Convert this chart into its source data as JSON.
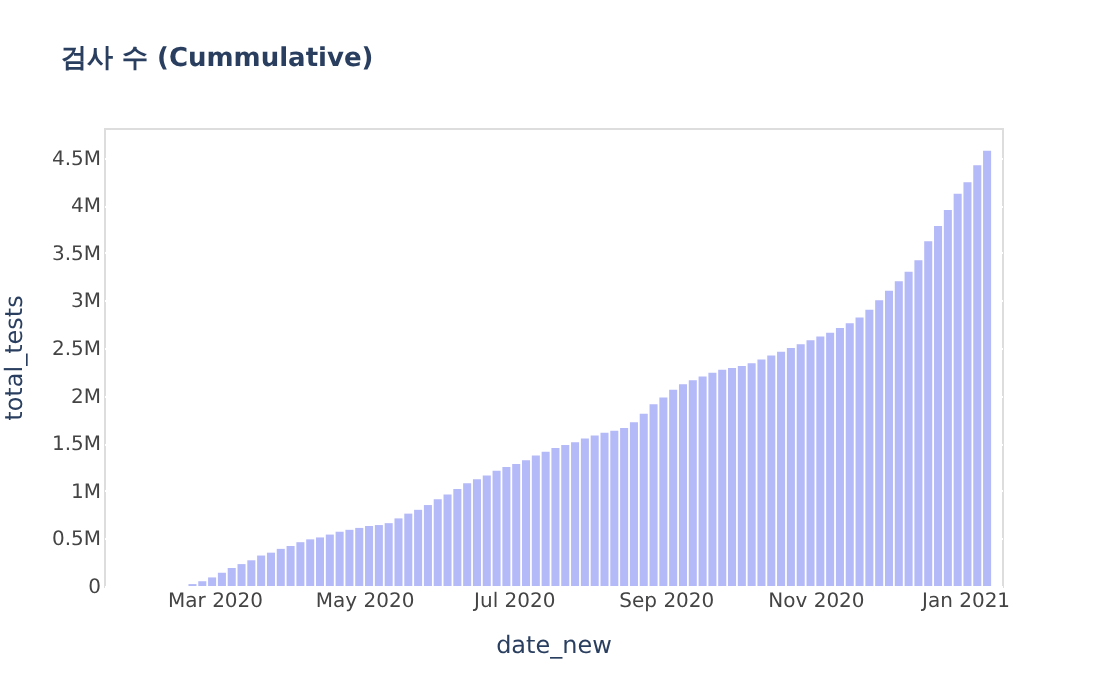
{
  "chart_data": {
    "type": "bar",
    "title": "검사 수 (Cummulative)",
    "xlabel": "date_new",
    "ylabel": "total_tests",
    "color": "#b4b9f7",
    "grid": "y",
    "x": [
      "2020-01-20",
      "2020-01-24",
      "2020-01-28",
      "2020-02-01",
      "2020-02-05",
      "2020-02-09",
      "2020-02-13",
      "2020-02-17",
      "2020-02-21",
      "2020-02-25",
      "2020-02-29",
      "2020-03-04",
      "2020-03-08",
      "2020-03-12",
      "2020-03-16",
      "2020-03-20",
      "2020-03-24",
      "2020-03-28",
      "2020-04-01",
      "2020-04-05",
      "2020-04-09",
      "2020-04-13",
      "2020-04-17",
      "2020-04-21",
      "2020-04-25",
      "2020-04-29",
      "2020-05-03",
      "2020-05-07",
      "2020-05-11",
      "2020-05-15",
      "2020-05-19",
      "2020-05-23",
      "2020-05-27",
      "2020-05-31",
      "2020-06-04",
      "2020-06-08",
      "2020-06-12",
      "2020-06-16",
      "2020-06-20",
      "2020-06-24",
      "2020-06-28",
      "2020-07-02",
      "2020-07-06",
      "2020-07-10",
      "2020-07-14",
      "2020-07-18",
      "2020-07-22",
      "2020-07-26",
      "2020-07-30",
      "2020-08-03",
      "2020-08-07",
      "2020-08-11",
      "2020-08-15",
      "2020-08-19",
      "2020-08-23",
      "2020-08-27",
      "2020-08-31",
      "2020-09-04",
      "2020-09-08",
      "2020-09-12",
      "2020-09-16",
      "2020-09-20",
      "2020-09-24",
      "2020-09-28",
      "2020-10-02",
      "2020-10-06",
      "2020-10-10",
      "2020-10-14",
      "2020-10-18",
      "2020-10-22",
      "2020-10-26",
      "2020-10-30",
      "2020-11-03",
      "2020-11-07",
      "2020-11-11",
      "2020-11-15",
      "2020-11-19",
      "2020-11-23",
      "2020-11-27",
      "2020-12-01",
      "2020-12-05",
      "2020-12-09",
      "2020-12-13",
      "2020-12-17",
      "2020-12-21",
      "2020-12-25",
      "2020-12-29",
      "2021-01-02",
      "2021-01-06",
      "2021-01-10"
    ],
    "values": [
      0,
      0,
      0,
      0,
      0,
      0,
      0,
      0,
      20000,
      50000,
      90000,
      140000,
      190000,
      230000,
      270000,
      320000,
      350000,
      390000,
      420000,
      460000,
      490000,
      510000,
      540000,
      570000,
      590000,
      610000,
      630000,
      640000,
      660000,
      710000,
      760000,
      800000,
      850000,
      910000,
      960000,
      1020000,
      1080000,
      1120000,
      1160000,
      1210000,
      1250000,
      1280000,
      1320000,
      1370000,
      1410000,
      1450000,
      1480000,
      1510000,
      1550000,
      1580000,
      1610000,
      1630000,
      1660000,
      1720000,
      1810000,
      1910000,
      1980000,
      2060000,
      2120000,
      2160000,
      2200000,
      2240000,
      2270000,
      2290000,
      2310000,
      2340000,
      2380000,
      2420000,
      2460000,
      2500000,
      2540000,
      2580000,
      2620000,
      2660000,
      2710000,
      2760000,
      2820000,
      2900000,
      3000000,
      3100000,
      3200000,
      3300000,
      3420000,
      3620000,
      3780000,
      3950000,
      4120000,
      4240000,
      4420000,
      4570000
    ],
    "xlim": [
      "2020-01-20",
      "2021-01-12"
    ],
    "xticks": [
      {
        "value": "2020-03-01",
        "label": "Mar 2020"
      },
      {
        "value": "2020-05-01",
        "label": "May 2020"
      },
      {
        "value": "2020-07-01",
        "label": "Jul 2020"
      },
      {
        "value": "2020-09-01",
        "label": "Sep 2020"
      },
      {
        "value": "2020-11-01",
        "label": "Nov 2020"
      },
      {
        "value": "2021-01-01",
        "label": "Jan 2021"
      }
    ],
    "ylim": [
      0,
      4810000
    ],
    "yticks": [
      0,
      {
        "value": 500000,
        "label": "0.5M"
      },
      {
        "value": 1000000,
        "label": "1M"
      },
      {
        "value": 1500000,
        "label": "1.5M"
      },
      {
        "value": 2000000,
        "label": "2M"
      },
      {
        "value": 2500000,
        "label": "2.5M"
      },
      {
        "value": 3000000,
        "label": "3M"
      },
      {
        "value": 3500000,
        "label": "3.5M"
      },
      {
        "value": 4000000,
        "label": "4M"
      },
      {
        "value": 4500000,
        "label": "4.5M"
      }
    ]
  }
}
